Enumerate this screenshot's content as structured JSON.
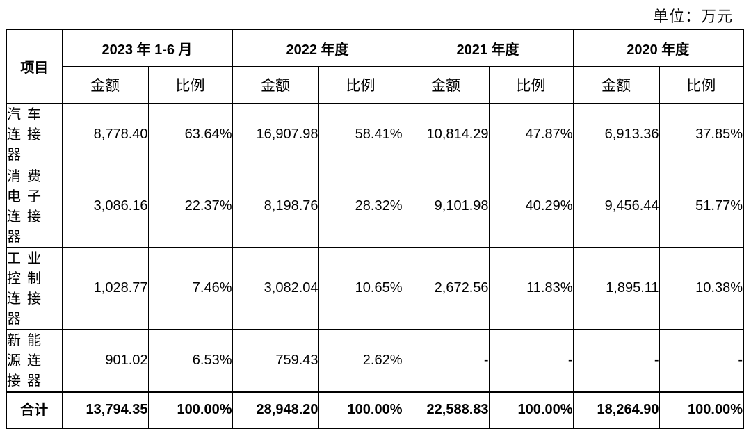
{
  "unit": "单位：万元",
  "item_header": "项目",
  "columns": [
    {
      "period": "2023 年 1-6 月",
      "amount": "金额",
      "ratio": "比例"
    },
    {
      "period": "2022 年度",
      "amount": "金额",
      "ratio": "比例"
    },
    {
      "period": "2021 年度",
      "amount": "金额",
      "ratio": "比例"
    },
    {
      "period": "2020 年度",
      "amount": "金额",
      "ratio": "比例"
    }
  ],
  "rows": [
    {
      "label": "汽车连接器",
      "cells": [
        {
          "value": "8,778.40"
        },
        {
          "value": "63.64%"
        },
        {
          "value": "16,907.98"
        },
        {
          "value": "58.41%"
        },
        {
          "value": "10,814.29"
        },
        {
          "value": "47.87%"
        },
        {
          "value": "6,913.36"
        },
        {
          "value": "37.85%"
        }
      ]
    },
    {
      "label": "消费电子连接器",
      "cells": [
        {
          "value": "3,086.16"
        },
        {
          "value": "22.37%"
        },
        {
          "value": "8,198.76"
        },
        {
          "value": "28.32%"
        },
        {
          "value": "9,101.98"
        },
        {
          "value": "40.29%"
        },
        {
          "value": "9,456.44"
        },
        {
          "value": "51.77%"
        }
      ]
    },
    {
      "label": "工业控制连接器",
      "cells": [
        {
          "value": "1,028.77"
        },
        {
          "value": "7.46%"
        },
        {
          "value": "3,082.04"
        },
        {
          "value": "10.65%"
        },
        {
          "value": "2,672.56"
        },
        {
          "value": "11.83%"
        },
        {
          "value": "1,895.11"
        },
        {
          "value": "10.38%"
        }
      ]
    },
    {
      "label": "新能源连接器",
      "cells": [
        {
          "value": "901.02"
        },
        {
          "value": "6.53%"
        },
        {
          "value": "759.43"
        },
        {
          "value": "2.62%"
        },
        {
          "value": "-"
        },
        {
          "value": "-"
        },
        {
          "value": "-"
        },
        {
          "value": "-"
        }
      ]
    }
  ],
  "total": {
    "label": "合计",
    "cells": [
      {
        "value": "13,794.35"
      },
      {
        "value": "100.00%"
      },
      {
        "value": "28,948.20"
      },
      {
        "value": "100.00%"
      },
      {
        "value": "22,588.83"
      },
      {
        "value": "100.00%"
      },
      {
        "value": "18,264.90"
      },
      {
        "value": "100.00%"
      }
    ]
  }
}
